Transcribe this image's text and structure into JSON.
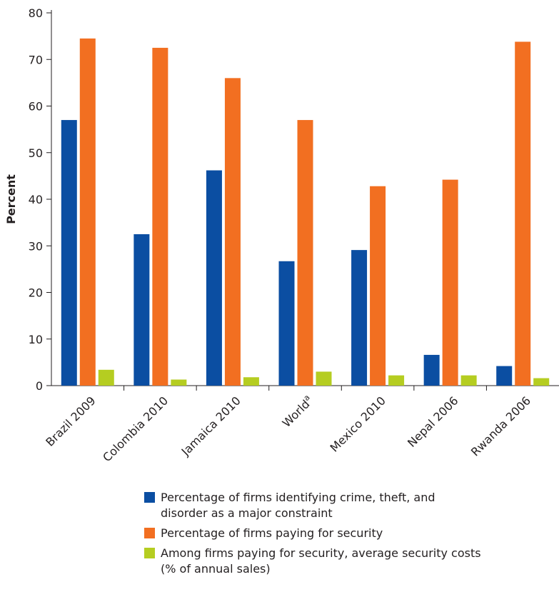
{
  "chart_data": {
    "type": "bar",
    "ylabel": "Percent",
    "ylim": [
      0,
      80
    ],
    "yticks": [
      0,
      10,
      20,
      30,
      40,
      50,
      60,
      70,
      80
    ],
    "categories": [
      {
        "label": "Brazil 2009"
      },
      {
        "label": "Colombia 2010"
      },
      {
        "label": "Jamaica 2010"
      },
      {
        "label": "World",
        "sup": "a"
      },
      {
        "label": "Mexico 2010"
      },
      {
        "label": "Nepal 2006"
      },
      {
        "label": "Rwanda 2006"
      }
    ],
    "series": [
      {
        "name": "Percentage of firms identifying crime, theft, and disorder as a major constraint",
        "color": "#0b4ea2",
        "values": [
          57.0,
          32.5,
          46.2,
          26.7,
          29.1,
          6.6,
          4.2
        ]
      },
      {
        "name": "Percentage of firms paying for security",
        "color": "#f26f21",
        "values": [
          74.5,
          72.5,
          66.0,
          57.0,
          42.8,
          44.2,
          73.8
        ]
      },
      {
        "name": "Among firms paying for security, average security costs (% of annual sales)",
        "color": "#b5cd21",
        "values": [
          3.4,
          1.3,
          1.8,
          3.0,
          2.2,
          2.2,
          1.6
        ]
      }
    ],
    "grid": false,
    "legend_position": "bottom"
  }
}
